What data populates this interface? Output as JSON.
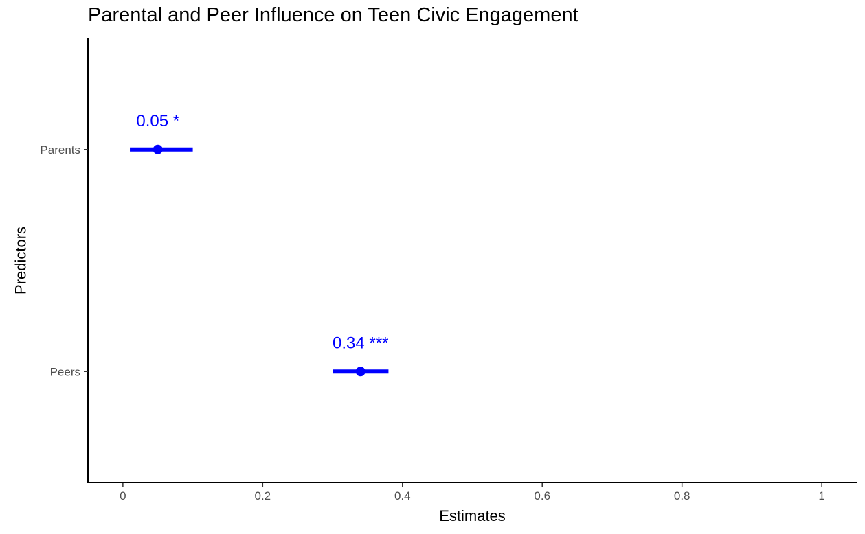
{
  "chart_data": {
    "type": "forest",
    "title": "Parental and Peer Influence on Teen Civic Engagement",
    "xlabel": "Estimates",
    "ylabel": "Predictors",
    "xlim": [
      -0.05,
      1.05
    ],
    "x_ticks": [
      0,
      0.2,
      0.4,
      0.6,
      0.8,
      1
    ],
    "x_tick_labels": [
      "0",
      "0.2",
      "0.4",
      "0.6",
      "0.8",
      "1"
    ],
    "categories": [
      "Parents",
      "Peers"
    ],
    "estimates": [
      {
        "predictor": "Parents",
        "estimate": 0.05,
        "ci_low": 0.01,
        "ci_high": 0.1,
        "label": "0.05 *"
      },
      {
        "predictor": "Peers",
        "estimate": 0.34,
        "ci_low": 0.3,
        "ci_high": 0.38,
        "label": "0.34 ***"
      }
    ],
    "grid": false,
    "legend": "none",
    "color": "#0000ff"
  }
}
